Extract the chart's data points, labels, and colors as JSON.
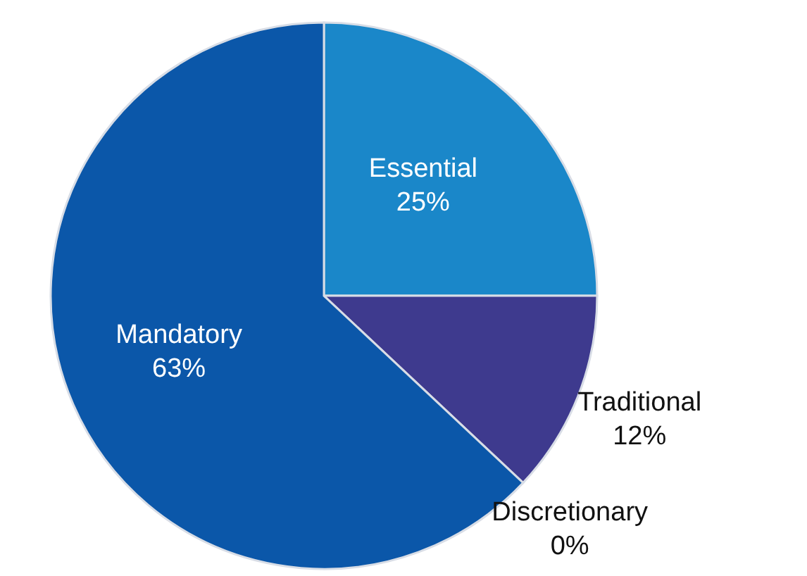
{
  "chart_data": {
    "type": "pie",
    "categories": [
      "Essential",
      "Traditional",
      "Discretionary",
      "Mandatory"
    ],
    "values": [
      25,
      12,
      0,
      63
    ],
    "value_labels": [
      "25%",
      "12%",
      "0%",
      "63%"
    ],
    "colors": [
      "#1a87c9",
      "#3e3a8e",
      "#9fb3d1",
      "#0b57a9"
    ],
    "legend": false
  }
}
